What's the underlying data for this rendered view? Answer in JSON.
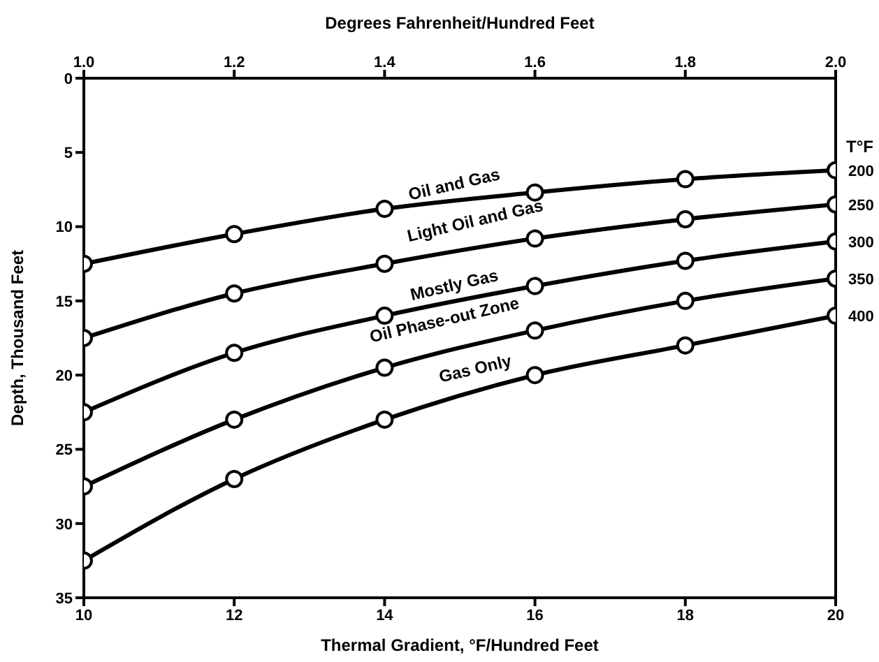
{
  "chart_data": {
    "type": "line",
    "xlabel": "Thermal Gradient, °F/Hundred Feet",
    "x2label": "Degrees Fahrenheit/Hundred Feet",
    "ylabel": "Depth, Thousand Feet",
    "legend_title": "T°F",
    "x": [
      10,
      12,
      14,
      16,
      18,
      20
    ],
    "series": [
      {
        "name": "200",
        "color": "#000000",
        "values": [
          12.5,
          10.5,
          8.8,
          7.7,
          6.8,
          6.2
        ]
      },
      {
        "name": "250",
        "color": "#000000",
        "values": [
          17.5,
          14.5,
          12.5,
          10.8,
          9.5,
          8.5
        ]
      },
      {
        "name": "300",
        "color": "#000000",
        "values": [
          22.5,
          18.5,
          16,
          14,
          12.3,
          11
        ]
      },
      {
        "name": "350",
        "color": "#000000",
        "values": [
          27.5,
          23,
          19.5,
          17,
          15,
          13.5
        ]
      },
      {
        "name": "400",
        "color": "#000000",
        "values": [
          32.5,
          27,
          23,
          20,
          18,
          16
        ]
      }
    ],
    "xlim": [
      10,
      20
    ],
    "xticks": [
      10,
      12,
      14,
      16,
      18,
      20
    ],
    "x2lim": [
      1.0,
      2.0
    ],
    "x2ticks": [
      {
        "value": 1.0,
        "label": "1.0"
      },
      1.2,
      1.4,
      1.6,
      1.8,
      {
        "value": 2.0,
        "label": "2.0"
      }
    ],
    "ylim": [
      35,
      0
    ],
    "yticks": [
      0,
      5,
      10,
      15,
      20,
      25,
      30,
      35
    ],
    "annotations": [
      "Oil and Gas",
      "Light Oil and Gas",
      "Mostly Gas",
      "Oil Phase-out Zone",
      "Gas Only"
    ],
    "grid": false,
    "marker": "circle",
    "line_style": "solid"
  }
}
